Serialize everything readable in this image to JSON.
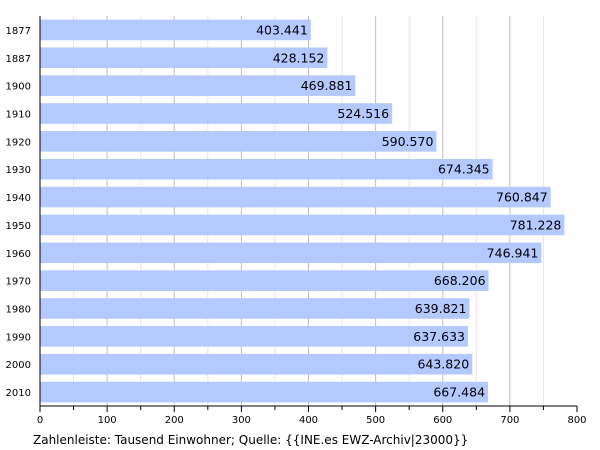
{
  "chart_data": {
    "type": "bar",
    "orientation": "horizontal",
    "categories": [
      "1877",
      "1887",
      "1900",
      "1910",
      "1920",
      "1930",
      "1940",
      "1950",
      "1960",
      "1970",
      "1980",
      "1990",
      "2000",
      "2010"
    ],
    "values": [
      403.441,
      428.152,
      469.881,
      524.516,
      590.57,
      674.345,
      760.847,
      781.228,
      746.941,
      668.206,
      639.821,
      637.633,
      643.82,
      667.484
    ],
    "value_labels": [
      "403.441",
      "428.152",
      "469.881",
      "524.516",
      "590.570",
      "674.345",
      "760.847",
      "781.228",
      "746.941",
      "668.206",
      "639.821",
      "637.633",
      "643.820",
      "667.484"
    ],
    "xlim": [
      0,
      800
    ],
    "xticks": [
      0,
      100,
      200,
      300,
      400,
      500,
      600,
      700,
      800
    ],
    "grid": true,
    "bar_color": "#b3c9ff",
    "caption": "Zahlenleiste: Tausend Einwohner; Quelle: {{INE.es EWZ-Archiv|23000}}"
  }
}
